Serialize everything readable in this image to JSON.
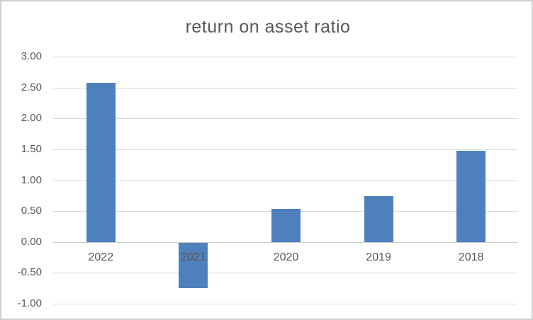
{
  "window": {
    "background_color": "#ffffff",
    "border_color": "#d1cfcf"
  },
  "chart_data": {
    "type": "bar",
    "title": "return on asset ratio",
    "categories": [
      "2022",
      "2021",
      "2020",
      "2019",
      "2018"
    ],
    "values": [
      2.58,
      -0.75,
      0.54,
      0.74,
      1.47
    ],
    "xlabel": "",
    "ylabel": "",
    "ylim": [
      -1.0,
      3.0
    ],
    "y_tick_values": [
      3.0,
      2.5,
      2.0,
      1.5,
      1.0,
      0.5,
      0.0,
      -0.5,
      -1.0
    ],
    "y_tick_labels": [
      "3.00",
      "2.50",
      "2.00",
      "1.50",
      "1.00",
      "0.50",
      "0.00",
      "-0.50",
      "-1.00"
    ],
    "grid": true,
    "legend": false,
    "bar_color": "#4e80bd",
    "text_color": "#595959",
    "gridline_color": "#d9d9d9",
    "negative_bars_overlap_category_labels": true
  }
}
